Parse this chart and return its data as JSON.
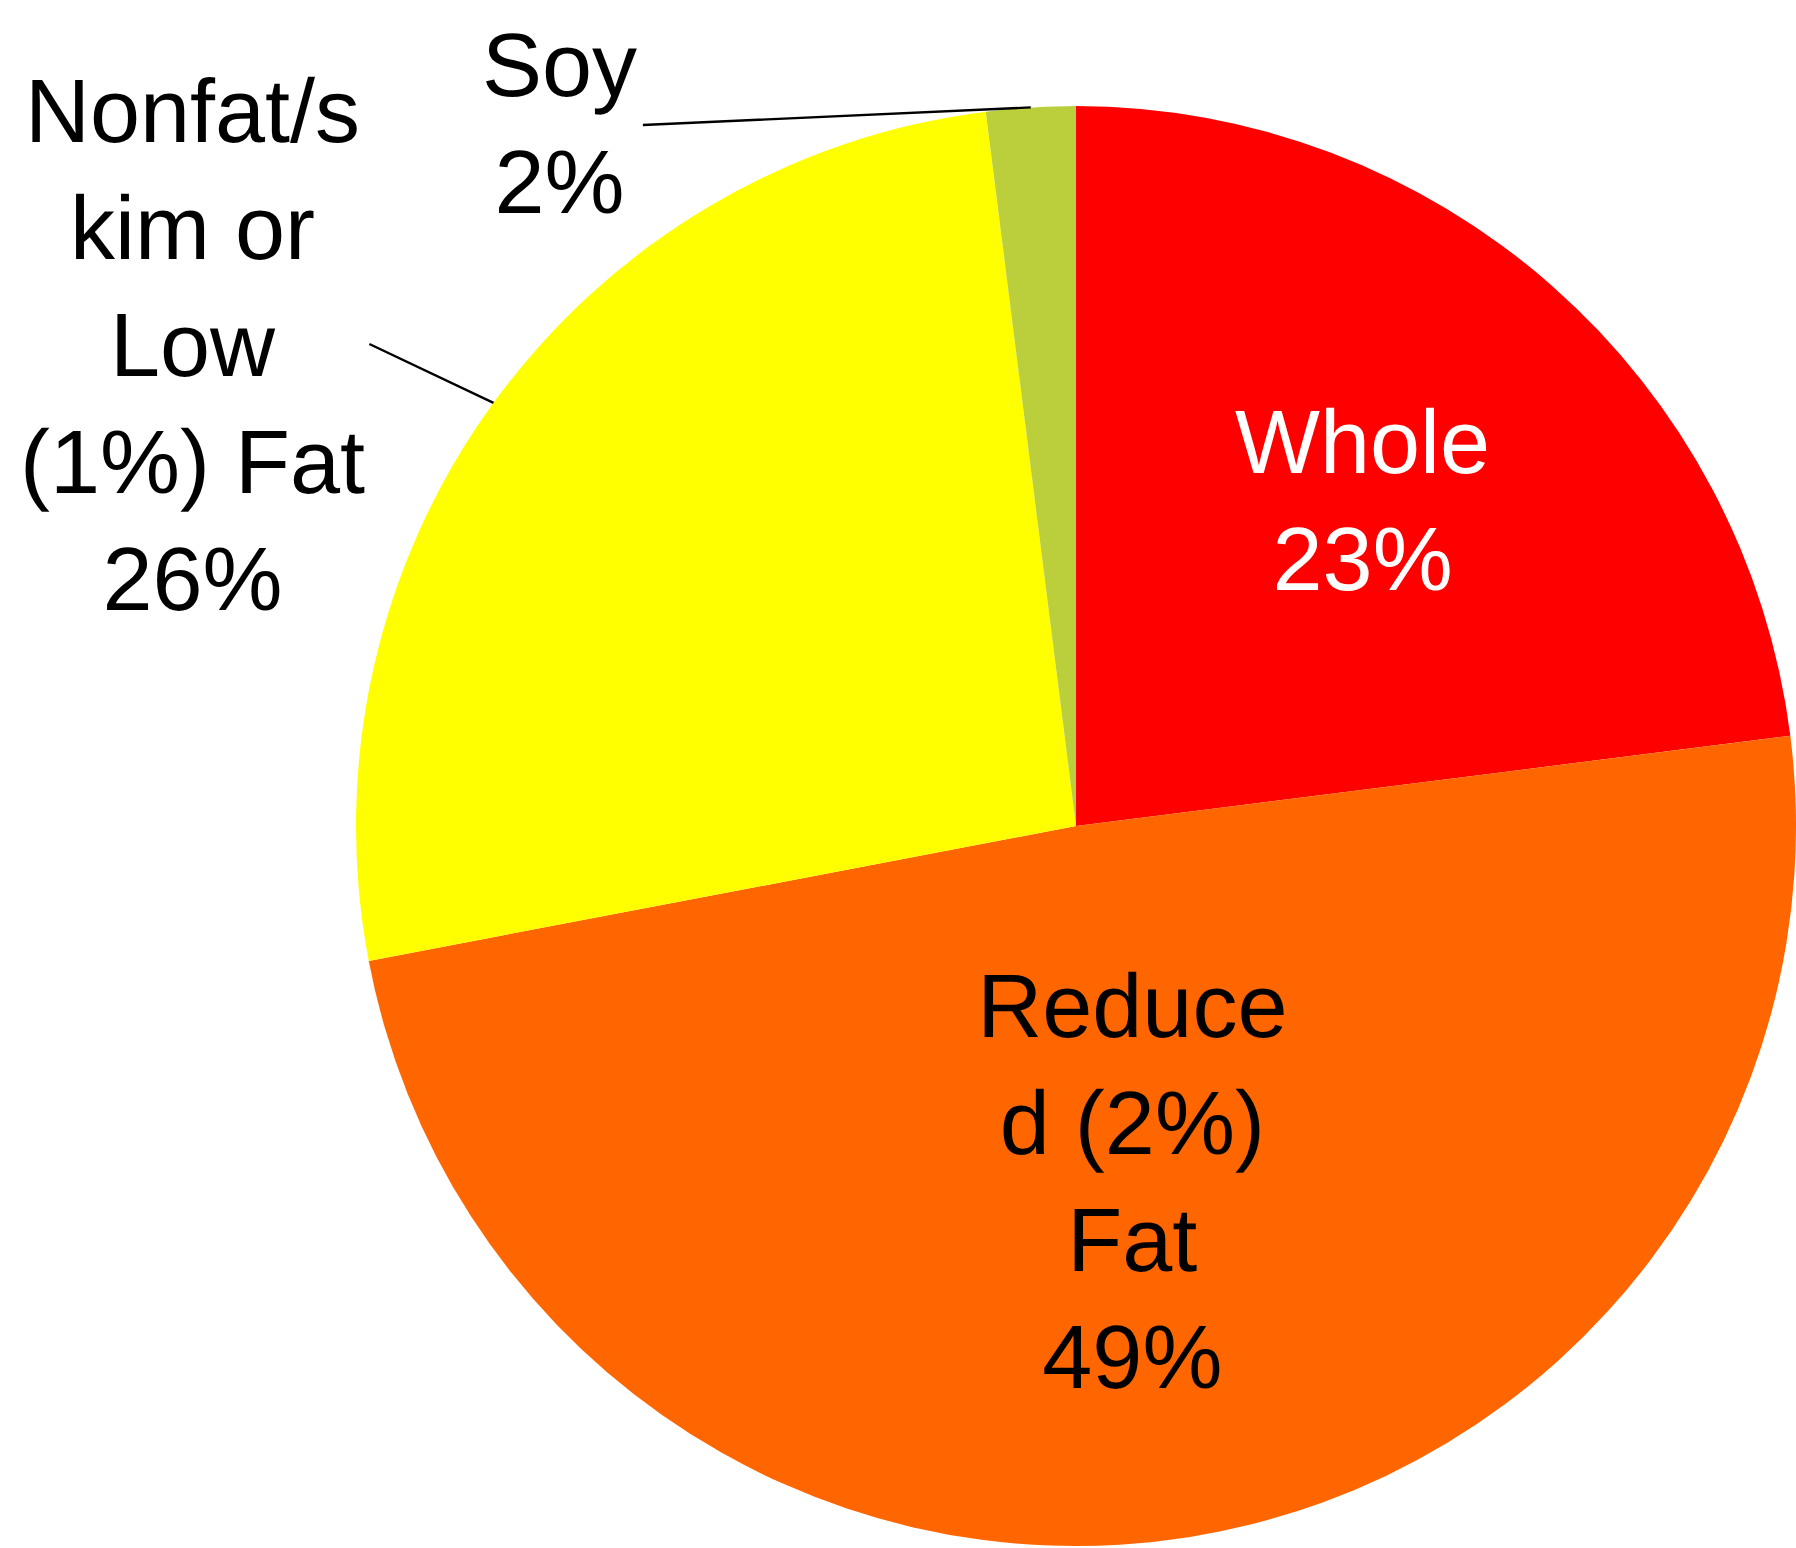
{
  "chart_data": {
    "type": "pie",
    "categories": [
      "Whole",
      "Reduce\nd (2%)\nFat",
      "Nonfat/s\nkim or\nLow\n(1%) Fat",
      "Soy"
    ],
    "values": [
      23,
      49,
      26,
      2
    ],
    "value_labels": [
      "23%",
      "49%",
      "26%",
      "2%"
    ],
    "colors": [
      "#ff0000",
      "#ff6600",
      "#ffff00",
      "#bbcf3c"
    ]
  }
}
